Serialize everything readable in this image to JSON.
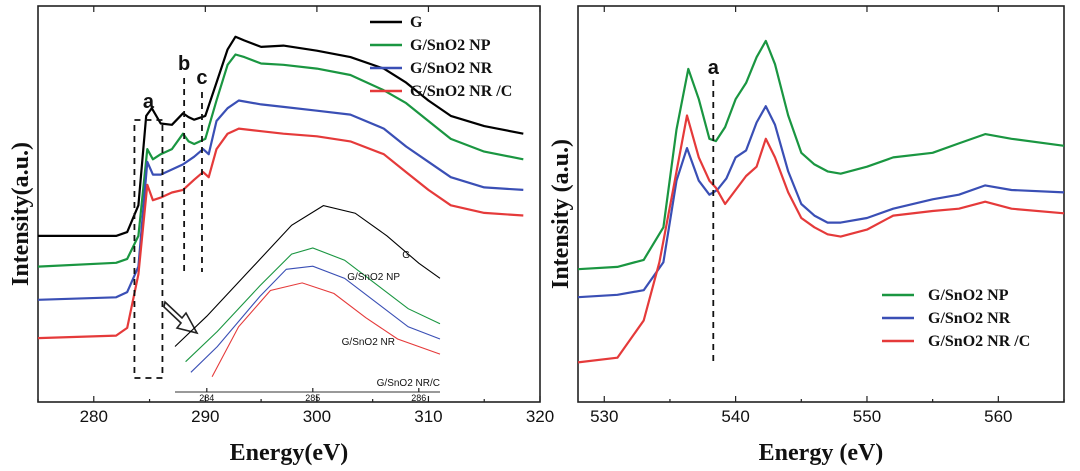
{
  "chart_data": [
    {
      "type": "line",
      "xlabel": "Energy(eV)",
      "ylabel": "Intensity(a.u.)",
      "xlim": [
        275,
        320
      ],
      "xticks": [
        280,
        290,
        300,
        310,
        320
      ],
      "legend_position": "top-right",
      "series": [
        {
          "name": "G",
          "color": "#000000",
          "x": [
            275,
            282,
            283,
            284,
            284.7,
            285.2,
            286,
            287,
            288,
            288.5,
            289,
            290,
            291,
            292,
            292.7,
            293.5,
            295,
            297,
            300,
            303,
            306,
            308,
            310,
            312,
            315,
            318.5
          ],
          "y": [
            0.1,
            0.1,
            0.115,
            0.22,
            0.57,
            0.6,
            0.54,
            0.535,
            0.58,
            0.565,
            0.555,
            0.57,
            0.7,
            0.83,
            0.88,
            0.865,
            0.84,
            0.845,
            0.825,
            0.8,
            0.755,
            0.7,
            0.63,
            0.57,
            0.53,
            0.5
          ]
        },
        {
          "name": "G/SnO2 NP",
          "color": "#1a9641",
          "x": [
            275,
            282,
            283,
            284,
            284.8,
            285.3,
            286,
            287,
            288,
            288.5,
            289,
            290,
            291,
            292,
            292.7,
            293.5,
            295,
            297,
            300,
            303,
            306,
            308,
            310,
            312,
            315,
            318.5
          ],
          "y": [
            -0.02,
            -0.005,
            0.01,
            0.1,
            0.44,
            0.4,
            0.42,
            0.44,
            0.5,
            0.47,
            0.46,
            0.48,
            0.63,
            0.77,
            0.81,
            0.8,
            0.775,
            0.77,
            0.755,
            0.73,
            0.67,
            0.62,
            0.55,
            0.48,
            0.43,
            0.4
          ]
        },
        {
          "name": "G/SnO2 NR",
          "color": "#3a4fb5",
          "x": [
            275,
            282,
            283,
            284,
            284.8,
            285.3,
            286,
            287,
            288,
            289,
            289.8,
            290.3,
            291,
            292,
            293,
            295,
            297,
            300,
            303,
            306,
            308,
            310,
            312,
            315,
            318.5
          ],
          "y": [
            -0.15,
            -0.14,
            -0.12,
            -0.02,
            0.39,
            0.34,
            0.34,
            0.36,
            0.38,
            0.41,
            0.44,
            0.42,
            0.55,
            0.6,
            0.63,
            0.615,
            0.605,
            0.59,
            0.575,
            0.52,
            0.45,
            0.39,
            0.33,
            0.29,
            0.28
          ]
        },
        {
          "name": "G/SnO2 NR /C",
          "color": "#e53a3a",
          "x": [
            275,
            282,
            283,
            284,
            284.8,
            285.3,
            286,
            287,
            288,
            289,
            289.8,
            290.3,
            291,
            292,
            293,
            295,
            297,
            300,
            303,
            306,
            308,
            310,
            312,
            315,
            318.5
          ],
          "y": [
            -0.3,
            -0.29,
            -0.26,
            -0.05,
            0.3,
            0.24,
            0.25,
            0.27,
            0.28,
            0.32,
            0.35,
            0.33,
            0.44,
            0.5,
            0.52,
            0.51,
            0.5,
            0.49,
            0.47,
            0.42,
            0.35,
            0.28,
            0.22,
            0.19,
            0.18
          ]
        }
      ],
      "annotations": [
        {
          "text": "a",
          "x": 284.9
        },
        {
          "text": "b",
          "x": 288.1
        },
        {
          "text": "c",
          "x": 289.7
        }
      ],
      "inset": {
        "xlim": [
          283.7,
          286.2
        ],
        "xticks": [
          284,
          285,
          286
        ],
        "series": [
          {
            "name": "G",
            "color": "#000000",
            "x": [
              283.7,
              284,
              284.4,
              284.8,
              285.1,
              285.4,
              285.7,
              286.0,
              286.2
            ],
            "y": [
              0.05,
              0.25,
              0.55,
              0.85,
              0.98,
              0.93,
              0.78,
              0.6,
              0.5
            ]
          },
          {
            "name": "G/SnO2 NP",
            "color": "#1a9641",
            "x": [
              283.8,
              284.1,
              284.5,
              284.8,
              285.0,
              285.3,
              285.6,
              285.9,
              286.2
            ],
            "y": [
              -0.05,
              0.15,
              0.45,
              0.66,
              0.7,
              0.62,
              0.46,
              0.3,
              0.2
            ]
          },
          {
            "name": "G/SnO2 NR",
            "color": "#3a4fb5",
            "x": [
              283.85,
              284.1,
              284.5,
              284.75,
              285.0,
              285.3,
              285.6,
              285.9,
              286.2
            ],
            "y": [
              -0.12,
              0.05,
              0.38,
              0.56,
              0.58,
              0.5,
              0.34,
              0.18,
              0.1
            ]
          },
          {
            "name": "G/SnO2 NR/C",
            "color": "#e53a3a",
            "x": [
              284.05,
              284.3,
              284.6,
              284.9,
              285.2,
              285.5,
              285.8,
              286.2
            ],
            "y": [
              -0.15,
              0.18,
              0.42,
              0.47,
              0.4,
              0.24,
              0.1,
              0.0
            ]
          }
        ]
      }
    },
    {
      "type": "line",
      "xlabel": "Energy (eV)",
      "ylabel": "Intensity (a.u.)",
      "xlim": [
        528,
        565
      ],
      "xticks": [
        530,
        540,
        550,
        560
      ],
      "legend_position": "bottom-right",
      "series": [
        {
          "name": "G/SnO2 NP",
          "color": "#1a9641",
          "x": [
            528,
            531,
            533,
            534.5,
            535.5,
            536.4,
            537.2,
            538,
            538.5,
            539.2,
            540,
            540.8,
            541.6,
            542.3,
            543,
            544,
            545,
            546,
            547,
            548,
            550,
            552,
            555,
            557,
            559,
            561,
            565
          ],
          "y": [
            0.02,
            0.03,
            0.06,
            0.2,
            0.62,
            0.88,
            0.75,
            0.58,
            0.57,
            0.63,
            0.75,
            0.82,
            0.93,
            1.0,
            0.9,
            0.68,
            0.52,
            0.47,
            0.44,
            0.43,
            0.46,
            0.5,
            0.52,
            0.56,
            0.6,
            0.58,
            0.55
          ]
        },
        {
          "name": "G/SnO2 NR",
          "color": "#3a4fb5",
          "x": [
            528,
            531,
            533,
            534.5,
            535.5,
            536.3,
            537.2,
            538,
            538.6,
            539.3,
            540,
            540.8,
            541.6,
            542.3,
            543,
            544,
            545,
            546,
            547,
            548,
            550,
            552,
            555,
            557,
            559,
            561,
            565
          ],
          "y": [
            -0.1,
            -0.09,
            -0.07,
            0.05,
            0.4,
            0.54,
            0.4,
            0.34,
            0.36,
            0.41,
            0.5,
            0.53,
            0.65,
            0.72,
            0.64,
            0.44,
            0.3,
            0.25,
            0.22,
            0.22,
            0.24,
            0.28,
            0.32,
            0.34,
            0.38,
            0.36,
            0.35
          ]
        },
        {
          "name": "G/SnO2 NR /C",
          "color": "#e53a3a",
          "x": [
            528,
            531,
            533,
            534.2,
            535.2,
            536.3,
            537.2,
            538,
            538.5,
            539.2,
            540,
            540.8,
            541.6,
            542.3,
            543,
            544,
            545,
            546,
            547,
            548,
            550,
            552,
            555,
            557,
            559,
            561,
            565
          ],
          "y": [
            -0.38,
            -0.36,
            -0.2,
            0.05,
            0.35,
            0.68,
            0.5,
            0.4,
            0.37,
            0.3,
            0.36,
            0.42,
            0.46,
            0.58,
            0.5,
            0.35,
            0.24,
            0.2,
            0.17,
            0.16,
            0.19,
            0.25,
            0.27,
            0.28,
            0.31,
            0.28,
            0.26
          ]
        }
      ],
      "annotations": [
        {
          "text": "a",
          "x": 538.3
        }
      ]
    }
  ]
}
